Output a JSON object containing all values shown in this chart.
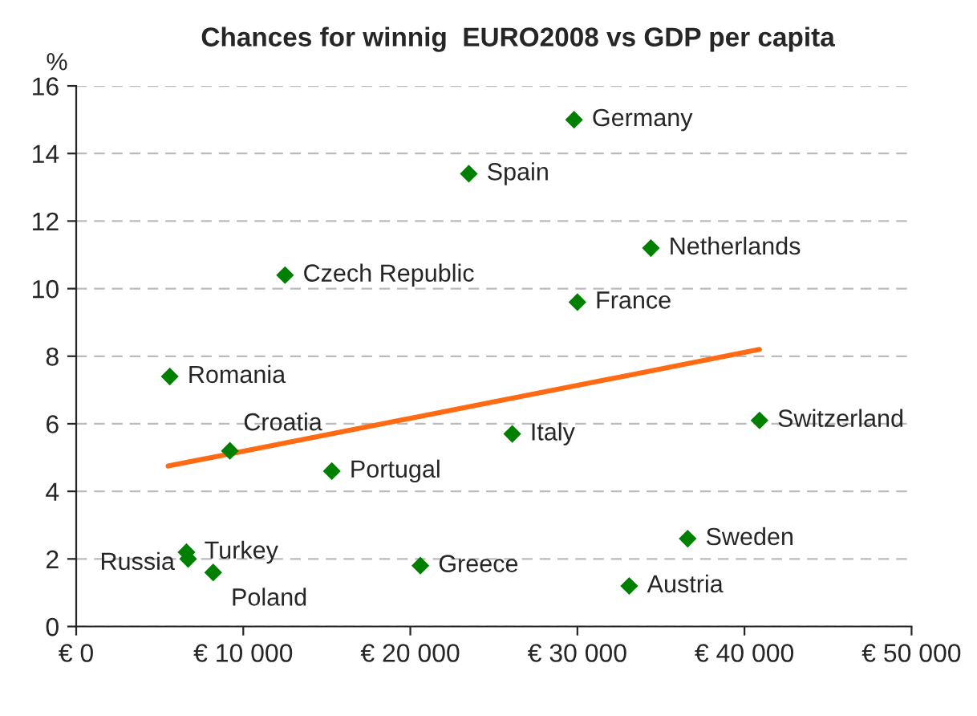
{
  "chart_data": {
    "type": "scatter",
    "title": "Chances for winnig  EURO2008 vs GDP per capita",
    "ylabel": "%",
    "series": [
      {
        "color": "#008000",
        "marker": "diamond",
        "x": [
          29800,
          23500,
          34400,
          12500,
          30000,
          5600,
          40900,
          26100,
          9200,
          15300,
          6600,
          6700,
          8200,
          20600,
          36600,
          33100
        ],
        "values": [
          15.0,
          13.4,
          11.2,
          10.4,
          9.6,
          7.4,
          6.1,
          5.7,
          5.2,
          4.6,
          2.2,
          2.0,
          1.6,
          1.8,
          2.6,
          1.2
        ]
      },
      {
        "type": "line",
        "color": "#ff6a13",
        "marker": "none",
        "line_style": "solid",
        "x": [
          5500,
          40900
        ],
        "values": [
          4.75,
          8.2
        ]
      }
    ],
    "annotations": [
      {
        "text": "Germany",
        "x": 29800,
        "y": 15.0
      },
      {
        "text": "Spain",
        "x": 23500,
        "y": 13.4
      },
      {
        "text": "Netherlands",
        "x": 34400,
        "y": 11.2
      },
      {
        "text": "Czech Republic",
        "x": 12500,
        "y": 10.4
      },
      {
        "text": "France",
        "x": 30000,
        "y": 9.6
      },
      {
        "text": "Romania",
        "x": 5600,
        "y": 7.4
      },
      {
        "text": "Switzerland",
        "x": 40900,
        "y": 6.1
      },
      {
        "text": "Italy",
        "x": 26100,
        "y": 5.7
      },
      {
        "text": "Croatia",
        "x": 9200,
        "y": 5.2
      },
      {
        "text": "Portugal",
        "x": 15300,
        "y": 4.6
      },
      {
        "text": "Turkey",
        "x": 6600,
        "y": 2.2
      },
      {
        "text": "Russia",
        "x": 6700,
        "y": 2.0
      },
      {
        "text": "Poland",
        "x": 8200,
        "y": 1.6
      },
      {
        "text": "Greece",
        "x": 20600,
        "y": 1.8
      },
      {
        "text": "Sweden",
        "x": 36600,
        "y": 2.6
      },
      {
        "text": "Austria",
        "x": 33100,
        "y": 1.2
      }
    ],
    "xlim": [
      0,
      50000
    ],
    "xticks": [
      {
        "value": 0,
        "label": "€ 0"
      },
      {
        "value": 10000,
        "label": "€ 10 000"
      },
      {
        "value": 20000,
        "label": "€ 20 000"
      },
      {
        "value": 30000,
        "label": "€ 30 000"
      },
      {
        "value": 40000,
        "label": "€ 40 000"
      },
      {
        "value": 50000,
        "label": "€ 50 000"
      }
    ],
    "ylim": [
      0,
      16
    ],
    "yticks": [
      0,
      2,
      4,
      6,
      8,
      10,
      12,
      14,
      16
    ],
    "grid": "y",
    "legend": false
  }
}
